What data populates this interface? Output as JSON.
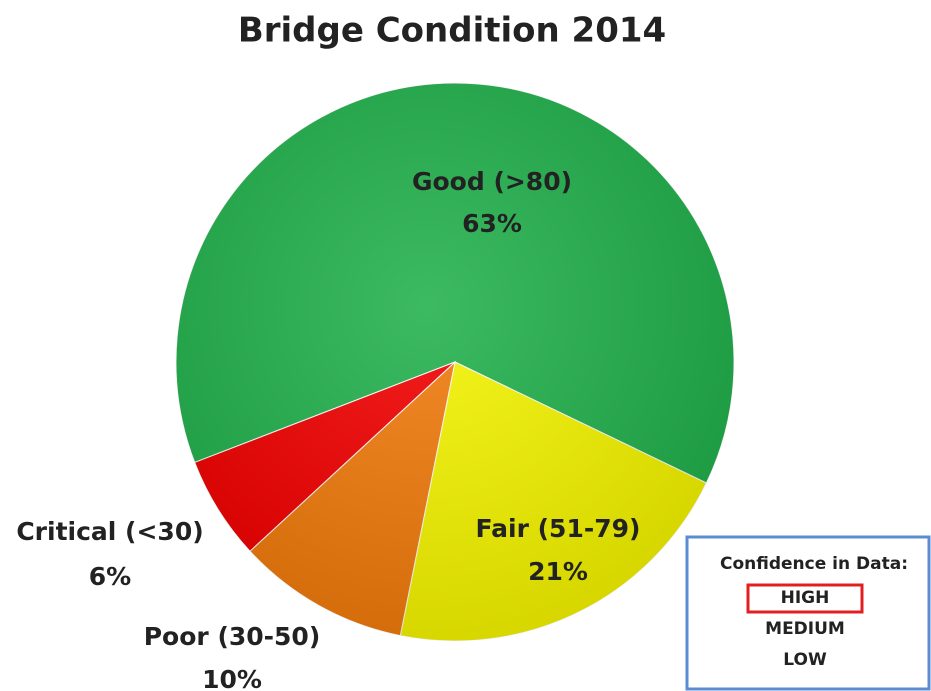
{
  "chart_data": {
    "type": "pie",
    "title": "Bridge Condition 2014",
    "categories": [
      "Good (>80)",
      "Fair (51-79)",
      "Poor (30-50)",
      "Critical (<30)"
    ],
    "values": [
      63,
      21,
      10,
      6
    ],
    "value_labels": [
      "63%",
      "21%",
      "10%",
      "6%"
    ],
    "colors": [
      "#22b14c",
      "#f5f500",
      "#f27b0c",
      "#f20000"
    ],
    "annotation": {
      "title": "Confidence in Data:",
      "levels": [
        "HIGH",
        "MEDIUM",
        "LOW"
      ],
      "selected": 0
    }
  }
}
